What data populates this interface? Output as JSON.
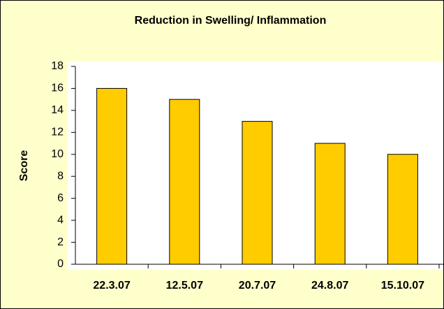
{
  "chart_data": {
    "type": "bar",
    "title": "Reduction in Swelling/ Inflammation",
    "y_label": "Score",
    "categories": [
      "22.3.07",
      "12.5.07",
      "20.7.07",
      "24.8.07",
      "15.10.07"
    ],
    "values": [
      16,
      15,
      13,
      11,
      10
    ],
    "color": "#ffcc00",
    "ylim": [
      0,
      18
    ],
    "yticks": [
      0,
      2,
      4,
      6,
      8,
      10,
      12,
      14,
      16,
      18
    ],
    "grid": false
  }
}
